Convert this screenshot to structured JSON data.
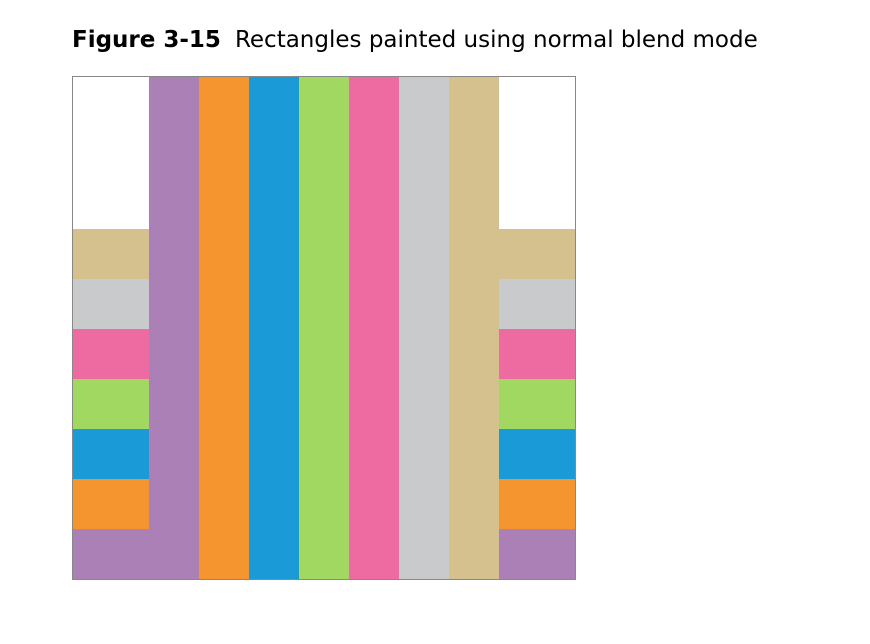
{
  "caption": {
    "label": "Figure 3-15",
    "text": "Rectangles painted using normal blend mode"
  },
  "figure": {
    "blend_mode": "normal",
    "rectangles": [
      {
        "name": "purple",
        "color": "#AB80B7"
      },
      {
        "name": "orange",
        "color": "#F4952F"
      },
      {
        "name": "blue",
        "color": "#1B9AD8"
      },
      {
        "name": "green",
        "color": "#A0D862"
      },
      {
        "name": "pink",
        "color": "#EE6BA2"
      },
      {
        "name": "gray",
        "color": "#C9CACC"
      },
      {
        "name": "tan",
        "color": "#D4C18E"
      }
    ]
  }
}
